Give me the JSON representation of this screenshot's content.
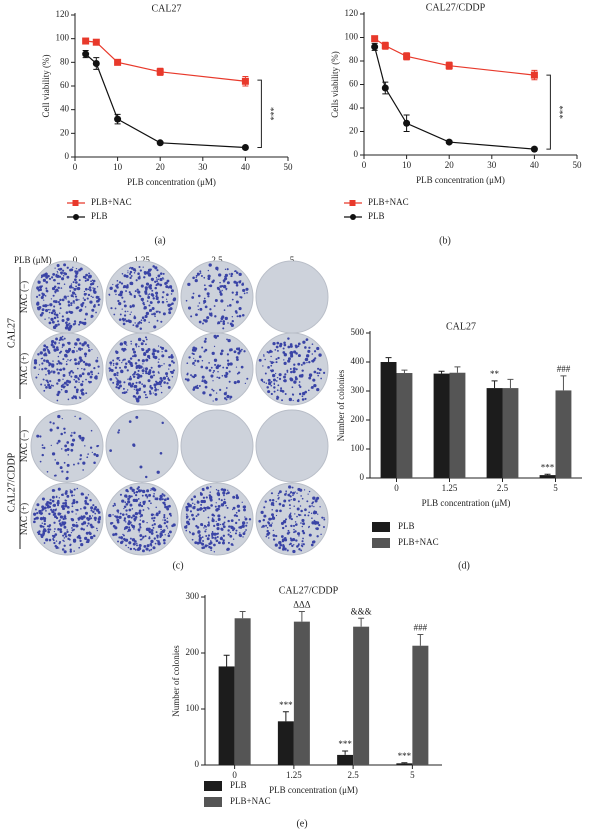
{
  "chart_data": [
    {
      "type": "line",
      "panel": "(a)",
      "title": "CAL27",
      "x_label": "PLB concentration (μM)",
      "y_label": "Cell viability (%)",
      "x": [
        2.5,
        5,
        10,
        20,
        40
      ],
      "series": [
        {
          "name": "PLB+NAC",
          "color": "#e8392b",
          "marker": "square",
          "values": [
            98,
            97,
            80,
            72,
            64
          ],
          "errors": [
            2,
            2,
            2,
            3,
            4
          ]
        },
        {
          "name": "PLB",
          "color": "#111111",
          "marker": "circle",
          "values": [
            87,
            79,
            32,
            12,
            8
          ],
          "errors": [
            3,
            5,
            4,
            1,
            1
          ]
        }
      ],
      "xlim": [
        0,
        50
      ],
      "xticks": [
        0,
        10,
        20,
        30,
        40,
        50
      ],
      "ylim": [
        0,
        120
      ],
      "yticks": [
        0,
        20,
        40,
        60,
        80,
        100,
        120
      ],
      "significance": {
        "label": "***",
        "range": [
          8,
          65
        ]
      }
    },
    {
      "type": "line",
      "panel": "(b)",
      "title": "CAL27/CDDP",
      "x_label": "PLB concentration (μM)",
      "y_label": "Cells viability (%)",
      "x": [
        2.5,
        5,
        10,
        20,
        40
      ],
      "series": [
        {
          "name": "PLB+NAC",
          "color": "#e8392b",
          "marker": "square",
          "values": [
            99,
            93,
            84,
            76,
            68
          ],
          "errors": [
            2,
            3,
            3,
            3,
            4
          ]
        },
        {
          "name": "PLB",
          "color": "#111111",
          "marker": "circle",
          "values": [
            92,
            57,
            27,
            11,
            5
          ],
          "errors": [
            3,
            5,
            7,
            1,
            1
          ]
        }
      ],
      "xlim": [
        0,
        50
      ],
      "xticks": [
        0,
        10,
        20,
        30,
        40,
        50
      ],
      "ylim": [
        0,
        120
      ],
      "yticks": [
        0,
        20,
        40,
        60,
        80,
        100,
        120
      ],
      "significance": {
        "label": "***",
        "range": [
          5,
          68
        ]
      }
    },
    {
      "type": "bar",
      "panel": "(d)",
      "title": "CAL27",
      "x_label": "PLB concentration (μM)",
      "y_label": "Number of colonies",
      "categories": [
        "0",
        "1.25",
        "2.5",
        "5"
      ],
      "series": [
        {
          "name": "PLB",
          "color": "#1c1c1c",
          "values": [
            400,
            360,
            310,
            10
          ],
          "errors": [
            15,
            8,
            25,
            3
          ],
          "value_annotations": [
            null,
            null,
            "**",
            "***"
          ]
        },
        {
          "name": "PLB+NAC",
          "color": "#555555",
          "values": [
            362,
            363,
            310,
            302
          ],
          "errors": [
            10,
            20,
            30,
            50
          ],
          "value_annotations": [
            null,
            null,
            null,
            "###"
          ]
        }
      ],
      "ylim": [
        0,
        500
      ],
      "yticks": [
        0,
        100,
        200,
        300,
        400,
        500
      ]
    },
    {
      "type": "bar",
      "panel": "(e)",
      "title": "CAL27/CDDP",
      "x_label": "PLB concentration (μM)",
      "y_label": "Number of colonies",
      "categories": [
        "0",
        "1.25",
        "2.5",
        "5"
      ],
      "series": [
        {
          "name": "PLB",
          "color": "#1c1c1c",
          "values": [
            176,
            78,
            18,
            3
          ],
          "errors": [
            20,
            17,
            7,
            1
          ],
          "value_annotations": [
            null,
            "***",
            "***",
            "***"
          ]
        },
        {
          "name": "PLB+NAC",
          "color": "#555555",
          "values": [
            262,
            256,
            247,
            213
          ],
          "errors": [
            12,
            18,
            15,
            20
          ],
          "value_annotations": [
            null,
            "ΔΔΔ",
            "&&&",
            "###"
          ]
        }
      ],
      "ylim": [
        0,
        300
      ],
      "yticks": [
        0,
        100,
        200,
        300
      ]
    }
  ],
  "panel_c": {
    "label": "(c)",
    "header": "PLB (μM)",
    "concentrations": [
      "0",
      "1.25",
      "2.5",
      "5"
    ],
    "groups": [
      {
        "name": "CAL27",
        "conditions": [
          "NAC (−)",
          "NAC (+)"
        ]
      },
      {
        "name": "CAL27/CDDP",
        "conditions": [
          "NAC (−)",
          "NAC (+)"
        ]
      }
    ]
  }
}
